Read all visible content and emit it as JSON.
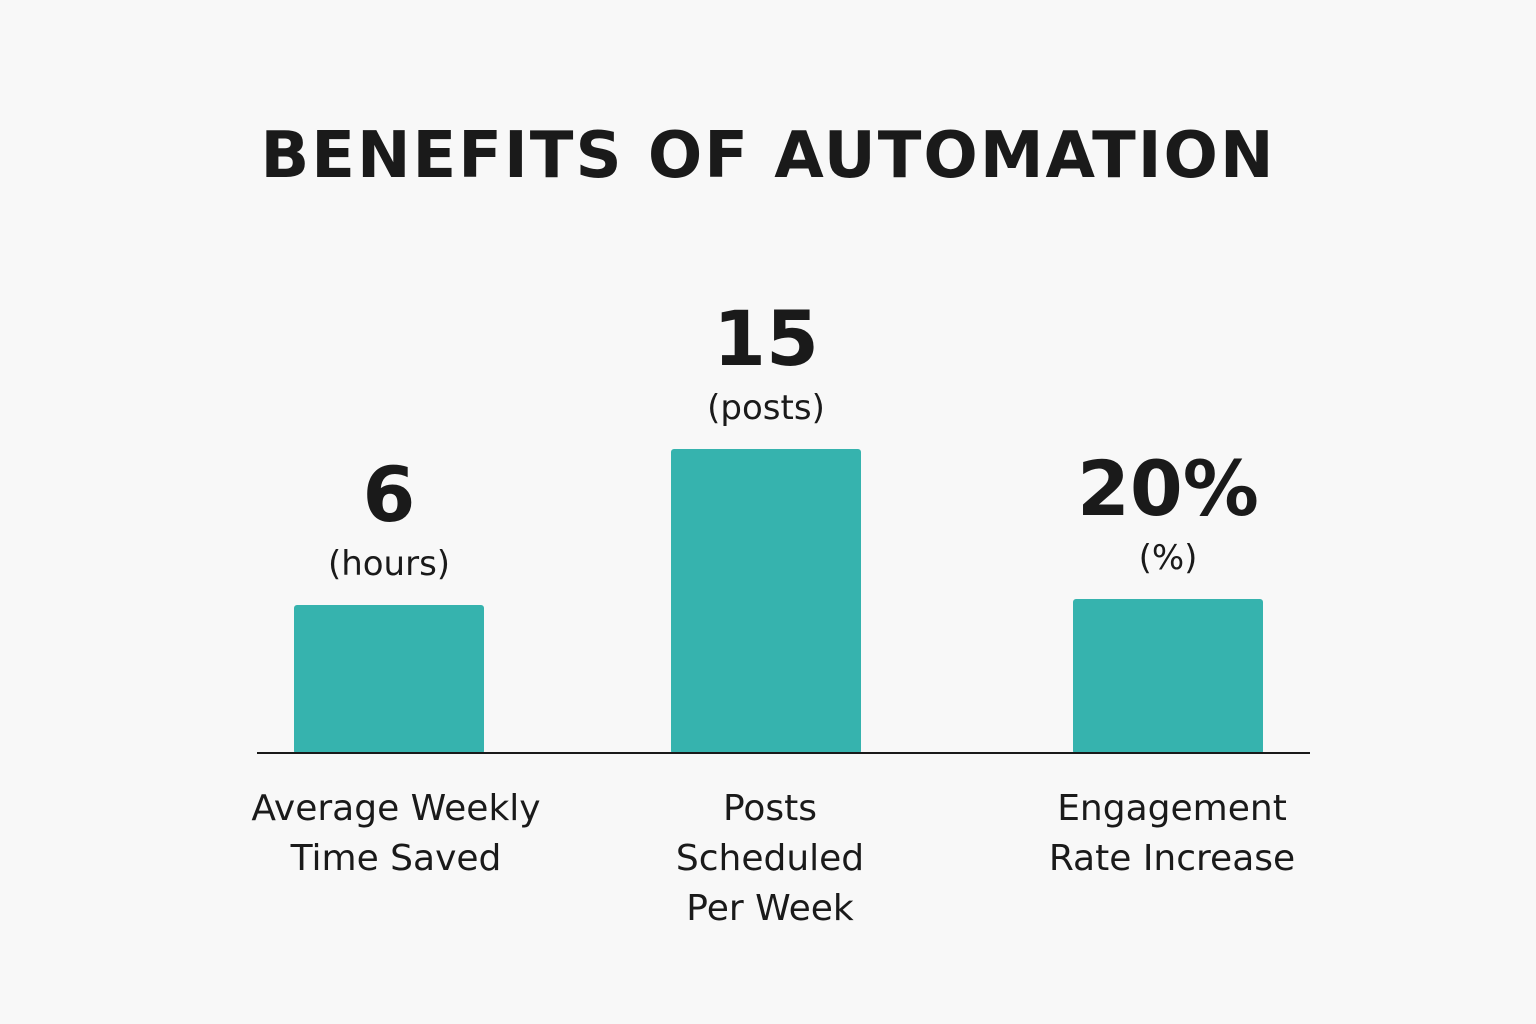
{
  "colors": {
    "background": "#f8f8f8",
    "bar": "#36b3ae",
    "text": "#1a1a1a",
    "axis": "#1a1a1a"
  },
  "chart_data": {
    "type": "bar",
    "title": "BENEFITS OF AUTOMATION",
    "xlabel": "",
    "ylabel": "",
    "grid": false,
    "legend": "none",
    "categories": [
      [
        "Average Weekly",
        "Time Saved"
      ],
      [
        "Posts",
        "Scheduled",
        "Per Week"
      ],
      [
        "Engagement",
        "Rate Increase"
      ]
    ],
    "values": [
      6,
      15,
      20
    ],
    "value_labels": [
      "6",
      "15",
      "20%"
    ],
    "unit_labels": [
      "(hours)",
      "(posts)",
      "(%)"
    ]
  }
}
